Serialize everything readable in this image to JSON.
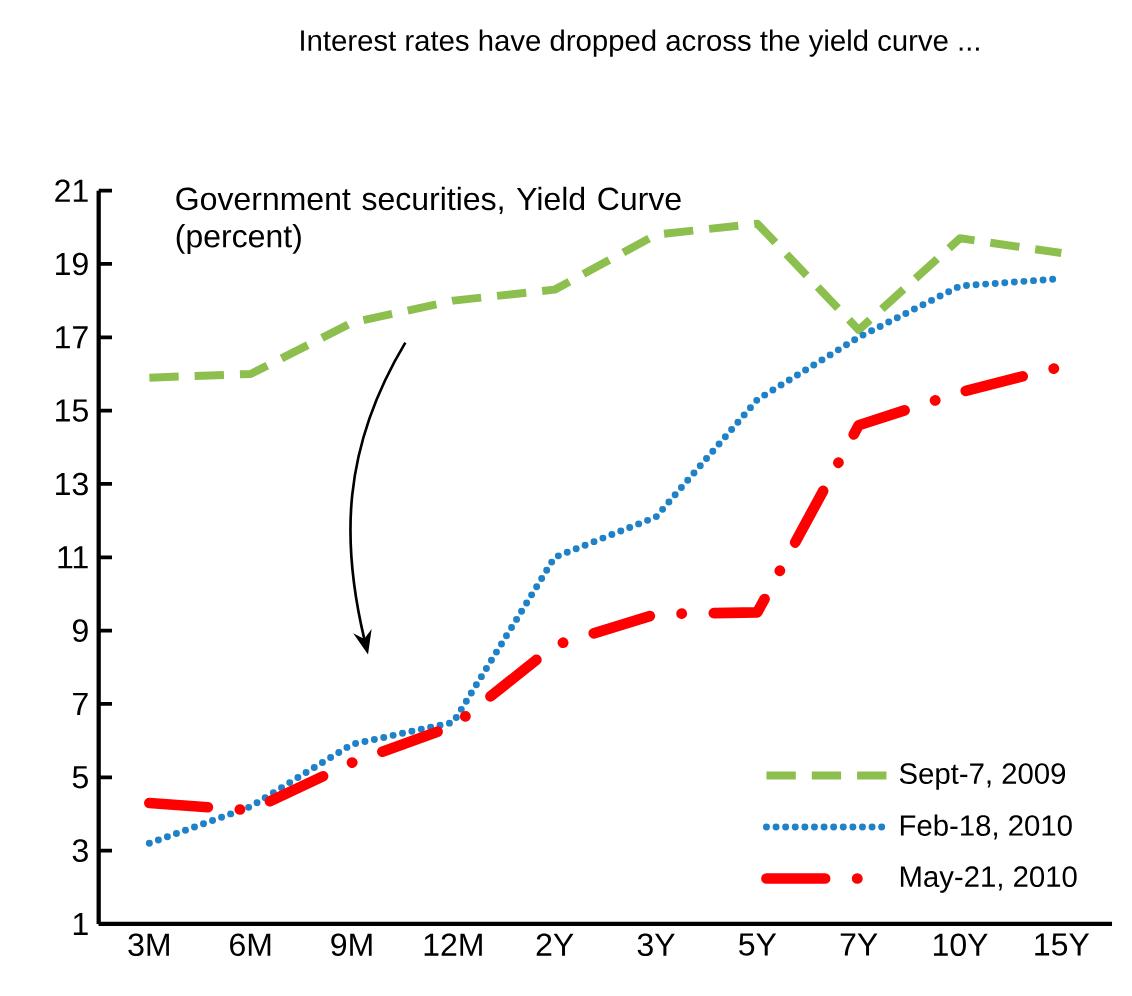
{
  "chart_data": {
    "type": "line",
    "title": "Interest rates have dropped across the yield curve ...",
    "annotations": [
      "Government securities, Yield Curve (percent)"
    ],
    "categories": [
      "3M",
      "6M",
      "9M",
      "12M",
      "2Y",
      "3Y",
      "5Y",
      "7Y",
      "10Y",
      "15Y"
    ],
    "ylim": [
      1,
      21
    ],
    "yticks": [
      1,
      3,
      5,
      7,
      9,
      11,
      13,
      15,
      17,
      19,
      21
    ],
    "legend": "bottom right",
    "grid": false,
    "marker": "none",
    "series": [
      {
        "name": "Sept-7, 2009",
        "color": "#8cbf4e",
        "line_style": "dashed",
        "values": [
          15.9,
          16.0,
          17.4,
          18.0,
          18.3,
          19.8,
          20.1,
          17.2,
          19.7,
          19.3
        ]
      },
      {
        "name": "Feb-18, 2010",
        "color": "#1f82c8",
        "line_style": "dotted",
        "values": [
          3.2,
          4.2,
          5.9,
          6.5,
          11.0,
          12.1,
          15.3,
          17.0,
          18.4,
          18.6
        ]
      },
      {
        "name": "May-21, 2010",
        "color": "#ff0000",
        "line_style": "dashdot",
        "values": [
          4.3,
          4.1,
          5.4,
          6.4,
          8.6,
          9.45,
          9.5,
          14.6,
          15.5,
          16.2
        ]
      }
    ]
  }
}
